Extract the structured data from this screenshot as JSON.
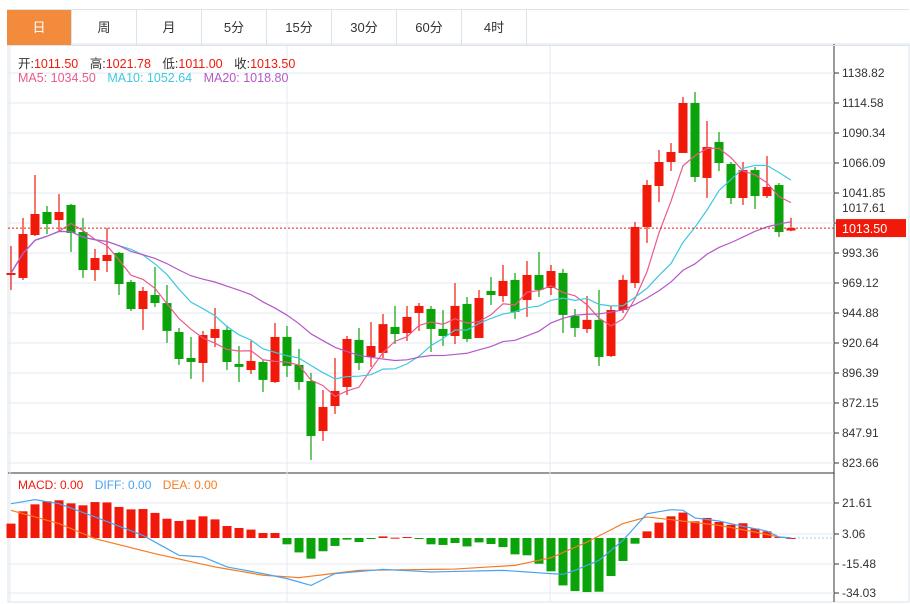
{
  "tabs": [
    {
      "label": "日",
      "active": true
    },
    {
      "label": "周"
    },
    {
      "label": "月"
    },
    {
      "label": "5分"
    },
    {
      "label": "15分"
    },
    {
      "label": "30分"
    },
    {
      "label": "60分"
    },
    {
      "label": "4时"
    }
  ],
  "ohlc_info": {
    "open_label": "开:",
    "open": "1011.50",
    "high_label": "高:",
    "high": "1021.78",
    "low_label": "低:",
    "low": "1011.00",
    "close_label": "收:",
    "close": "1013.50"
  },
  "ma_info": {
    "ma5": "MA5: 1034.50",
    "ma10": "MA10: 1052.64",
    "ma20": "MA20: 1018.80"
  },
  "macd_info": {
    "macd": "MACD: 0.00",
    "diff": "DIFF: 0.00",
    "dea": "DEA: 0.00"
  },
  "current_price": "1013.50",
  "colors": {
    "up": "#f0190a",
    "down": "#0aa30a",
    "ma5": "#ea5a8c",
    "ma10": "#3fc8de",
    "ma20": "#b458c8",
    "diff": "#4aa3ef",
    "dea": "#f57b22",
    "accent": "#f28b3c"
  },
  "chart_data": {
    "type": "candlestick",
    "price_ticks": [
      "1138.82",
      "1114.58",
      "1090.34",
      "1066.09",
      "1041.85",
      "1017.61",
      "993.36",
      "969.12",
      "944.88",
      "920.64",
      "896.39",
      "872.15",
      "847.91",
      "823.66"
    ],
    "price_range": [
      823.66,
      1138.82
    ],
    "macd_ticks": [
      "21.61",
      "3.06",
      "-15.48",
      "-34.03"
    ],
    "candles": [
      [
        975.6,
        977.2,
        999.0,
        963.5
      ],
      [
        973.2,
        1008.7,
        1021.7,
        971.6
      ],
      [
        1007.9,
        1024.9,
        1056.4,
        1007.1
      ],
      [
        1026.5,
        1016.8,
        1031.4,
        1008.7
      ],
      [
        1020.0,
        1026.5,
        1041.0,
        1010.3
      ],
      [
        1032.2,
        1009.5,
        1033.0,
        994.2
      ],
      [
        1010.3,
        979.6,
        1021.7,
        973.2
      ],
      [
        979.6,
        989.3,
        996.6,
        970.8
      ],
      [
        986.9,
        991.8,
        1013.6,
        978.0
      ],
      [
        993.4,
        968.3,
        994.2,
        959.4
      ],
      [
        969.9,
        948.1,
        971.6,
        946.5
      ],
      [
        948.1,
        962.7,
        965.9,
        931.2
      ],
      [
        959.4,
        952.9,
        982.1,
        949.7
      ],
      [
        952.9,
        930.4,
        967.5,
        920.7
      ],
      [
        929.5,
        907.7,
        932.8,
        902.9
      ],
      [
        908.5,
        905.3,
        925.5,
        891.6
      ],
      [
        904.5,
        927.1,
        930.4,
        889.1
      ],
      [
        924.7,
        931.9,
        948.9,
        917.4
      ],
      [
        931.2,
        905.3,
        934.8,
        898.8
      ],
      [
        903.7,
        901.3,
        918.2,
        889.1
      ],
      [
        898.8,
        906.1,
        922.3,
        895.6
      ],
      [
        905.3,
        890.8,
        906.9,
        881.1
      ],
      [
        889.1,
        925.5,
        936.8,
        888.3
      ],
      [
        925.5,
        902.1,
        934.4,
        893.2
      ],
      [
        902.9,
        889.1,
        915.8,
        882.7
      ],
      [
        889.9,
        845.5,
        896.4,
        826.1
      ],
      [
        849.5,
        868.9,
        882.7,
        841.5
      ],
      [
        869.7,
        881.9,
        908.5,
        863.3
      ],
      [
        885.1,
        923.9,
        926.3,
        878.6
      ],
      [
        923.1,
        904.5,
        932.8,
        898.8
      ],
      [
        909.3,
        918.2,
        937.6,
        901.3
      ],
      [
        912.6,
        935.9,
        944.1,
        908.5
      ],
      [
        933.6,
        927.9,
        950.6,
        919.8
      ],
      [
        928.7,
        941.7,
        950.6,
        922.3
      ],
      [
        944.9,
        950.6,
        953.0,
        930.4
      ],
      [
        948.1,
        932.0,
        950.6,
        913.4
      ],
      [
        932.0,
        926.3,
        947.3,
        918.2
      ],
      [
        926.3,
        950.6,
        969.1,
        919.8
      ],
      [
        952.2,
        923.9,
        957.8,
        921.5
      ],
      [
        924.7,
        957.0,
        963.5,
        924.7
      ],
      [
        962.7,
        959.4,
        974.0,
        951.4
      ],
      [
        958.6,
        970.8,
        983.7,
        953.8
      ],
      [
        971.6,
        945.7,
        977.2,
        940.0
      ],
      [
        955.4,
        975.6,
        986.9,
        941.7
      ],
      [
        975.6,
        963.5,
        994.2,
        957.8
      ],
      [
        965.1,
        978.8,
        983.7,
        959.4
      ],
      [
        977.2,
        943.3,
        980.5,
        928.7
      ],
      [
        942.5,
        932.8,
        948.1,
        925.5
      ],
      [
        931.9,
        939.3,
        958.6,
        928.7
      ],
      [
        939.3,
        909.3,
        963.5,
        902.1
      ],
      [
        910.1,
        947.3,
        950.6,
        909.3
      ],
      [
        947.3,
        971.6,
        975.6,
        944.9
      ],
      [
        969.1,
        1014.4,
        1018.4,
        965.1
      ],
      [
        1014.4,
        1048.3,
        1052.4,
        1001.5
      ],
      [
        1047.5,
        1066.9,
        1076.6,
        1034.6
      ],
      [
        1066.9,
        1075.0,
        1082.2,
        1059.6
      ],
      [
        1074.2,
        1114.6,
        1119.4,
        1074.2
      ],
      [
        1114.6,
        1054.8,
        1123.5,
        1050.7
      ],
      [
        1054.0,
        1079.0,
        1100.0,
        1037.8
      ],
      [
        1083.1,
        1066.1,
        1091.1,
        1059.6
      ],
      [
        1065.3,
        1037.8,
        1066.9,
        1032.9
      ],
      [
        1037.8,
        1060.4,
        1066.9,
        1032.2
      ],
      [
        1060.4,
        1039.4,
        1062.9,
        1028.9
      ],
      [
        1039.4,
        1046.7,
        1071.7,
        1037.8
      ],
      [
        1048.3,
        1010.3,
        1049.9,
        1006.3
      ],
      [
        1011.5,
        1013.5,
        1021.78,
        1011.0
      ]
    ],
    "macd_bars": [
      8.9,
      16.5,
      20.8,
      22.7,
      23.3,
      21.4,
      20.2,
      22.2,
      22.0,
      19.2,
      17.7,
      17.9,
      15.5,
      11.9,
      10.5,
      11.3,
      13.4,
      11.5,
      7.4,
      6.2,
      5.2,
      3.1,
      3.1,
      -3.9,
      -8.9,
      -12.8,
      -8.2,
      -4.9,
      -1.0,
      -2.5,
      -0.4,
      1.0,
      0.2,
      0.6,
      -0.6,
      -3.9,
      -4.3,
      -3.1,
      -5.2,
      -2.7,
      -3.7,
      -5.6,
      -10.1,
      -10.7,
      -15.9,
      -20.6,
      -29.3,
      -32.8,
      -33.4,
      -33.2,
      -23.5,
      -14.2,
      -3.5,
      4.1,
      9.5,
      13.4,
      15.7,
      10.3,
      12.4,
      9.9,
      8.2,
      9.1,
      5.8,
      4.1,
      0.6,
      0
    ],
    "diff": [
      [
        0,
        21.2
      ],
      [
        2,
        23.7
      ],
      [
        4,
        21.2
      ],
      [
        7,
        13.0
      ],
      [
        11,
        1.6
      ],
      [
        14,
        -10.7
      ],
      [
        16,
        -11.7
      ],
      [
        18,
        -17.9
      ],
      [
        21,
        -22.0
      ],
      [
        23,
        -25.1
      ],
      [
        25,
        -29.3
      ],
      [
        27,
        -22.0
      ],
      [
        31,
        -19.4
      ],
      [
        35,
        -21.0
      ],
      [
        41,
        -20.0
      ],
      [
        46,
        -22.5
      ],
      [
        47,
        -20.0
      ],
      [
        49,
        -13.8
      ],
      [
        51,
        -1.4
      ],
      [
        53,
        15.0
      ],
      [
        55,
        17.5
      ],
      [
        56,
        17.1
      ],
      [
        57,
        12.4
      ],
      [
        59,
        10.5
      ],
      [
        61,
        7.2
      ],
      [
        63,
        4.3
      ],
      [
        64,
        0.6
      ],
      [
        65,
        0
      ]
    ],
    "dea": [
      [
        0,
        17.1
      ],
      [
        4,
        8.9
      ],
      [
        7,
        -0.4
      ],
      [
        12,
        -9.7
      ],
      [
        17,
        -17.9
      ],
      [
        21,
        -23.0
      ],
      [
        24,
        -24.5
      ],
      [
        29,
        -20.0
      ],
      [
        37,
        -19.2
      ],
      [
        42,
        -16.9
      ],
      [
        45,
        -12.2
      ],
      [
        48,
        -2.5
      ],
      [
        51,
        8.9
      ],
      [
        53,
        13.0
      ],
      [
        55,
        11.3
      ],
      [
        59,
        7.8
      ],
      [
        62,
        3.7
      ],
      [
        64,
        0.6
      ],
      [
        65,
        0
      ]
    ]
  }
}
